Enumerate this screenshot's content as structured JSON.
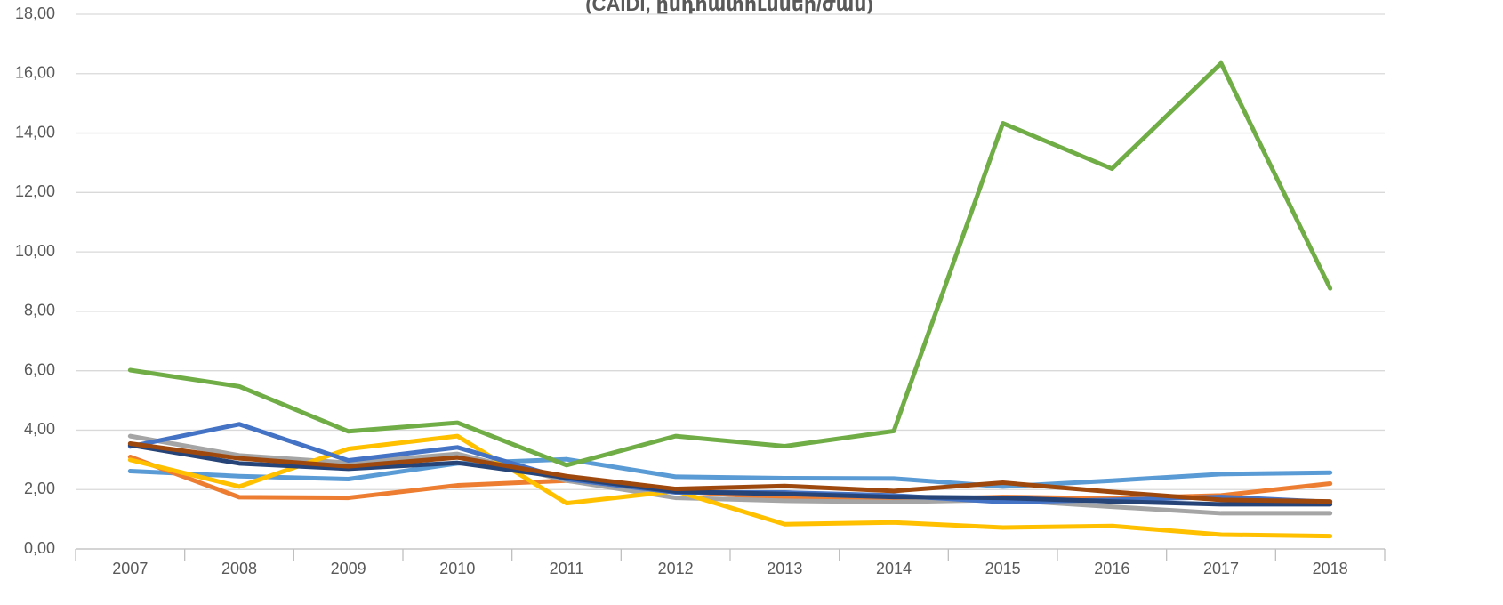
{
  "chart_data": {
    "type": "line",
    "title": "(CAIDI, ընդհատումներ/ժամ)",
    "categories": [
      "2007",
      "2008",
      "2009",
      "2010",
      "2011",
      "2012",
      "2013",
      "2014",
      "2015",
      "2016",
      "2017",
      "2018"
    ],
    "series": [
      {
        "color": "#5B9BD5",
        "values": [
          2.62,
          2.45,
          2.35,
          2.88,
          3.02,
          2.43,
          2.38,
          2.37,
          2.1,
          2.3,
          2.52,
          2.57
        ]
      },
      {
        "color": "#ED7D31",
        "values": [
          3.1,
          1.74,
          1.72,
          2.14,
          2.3,
          1.95,
          1.7,
          1.65,
          1.75,
          1.7,
          1.8,
          2.2
        ]
      },
      {
        "color": "#A5A5A5",
        "values": [
          3.8,
          3.15,
          2.9,
          3.2,
          2.3,
          1.72,
          1.62,
          1.58,
          1.65,
          1.42,
          1.2,
          1.2
        ]
      },
      {
        "color": "#FFC000",
        "values": [
          3.0,
          2.1,
          3.37,
          3.8,
          1.54,
          1.95,
          0.83,
          0.89,
          0.72,
          0.77,
          0.48,
          0.43
        ]
      },
      {
        "color": "#4472C4",
        "values": [
          3.45,
          4.2,
          2.98,
          3.42,
          2.35,
          1.9,
          1.9,
          1.8,
          1.58,
          1.65,
          1.75,
          1.58
        ]
      },
      {
        "color": "#70AD47",
        "values": [
          6.02,
          5.47,
          3.96,
          4.25,
          2.82,
          3.8,
          3.46,
          3.97,
          14.33,
          12.8,
          16.35,
          8.77
        ]
      },
      {
        "color": "#264478",
        "values": [
          3.5,
          2.88,
          2.7,
          2.9,
          2.4,
          1.93,
          1.85,
          1.75,
          1.72,
          1.6,
          1.5,
          1.5
        ]
      },
      {
        "color": "#9E480E",
        "values": [
          3.55,
          3.05,
          2.78,
          3.08,
          2.45,
          2.02,
          2.12,
          1.95,
          2.23,
          1.92,
          1.65,
          1.6
        ]
      }
    ],
    "ylim": [
      0,
      18
    ],
    "yticks": [
      {
        "value": 0,
        "label": "0,00"
      },
      {
        "value": 2,
        "label": "2,00"
      },
      {
        "value": 4,
        "label": "4,00"
      },
      {
        "value": 6,
        "label": "6,00"
      },
      {
        "value": 8,
        "label": "8,00"
      },
      {
        "value": 10,
        "label": "10,00"
      },
      {
        "value": 12,
        "label": "12,00"
      },
      {
        "value": 14,
        "label": "14,00"
      },
      {
        "value": 16,
        "label": "16,00"
      },
      {
        "value": 18,
        "label": "18,00"
      }
    ],
    "grid": true
  }
}
